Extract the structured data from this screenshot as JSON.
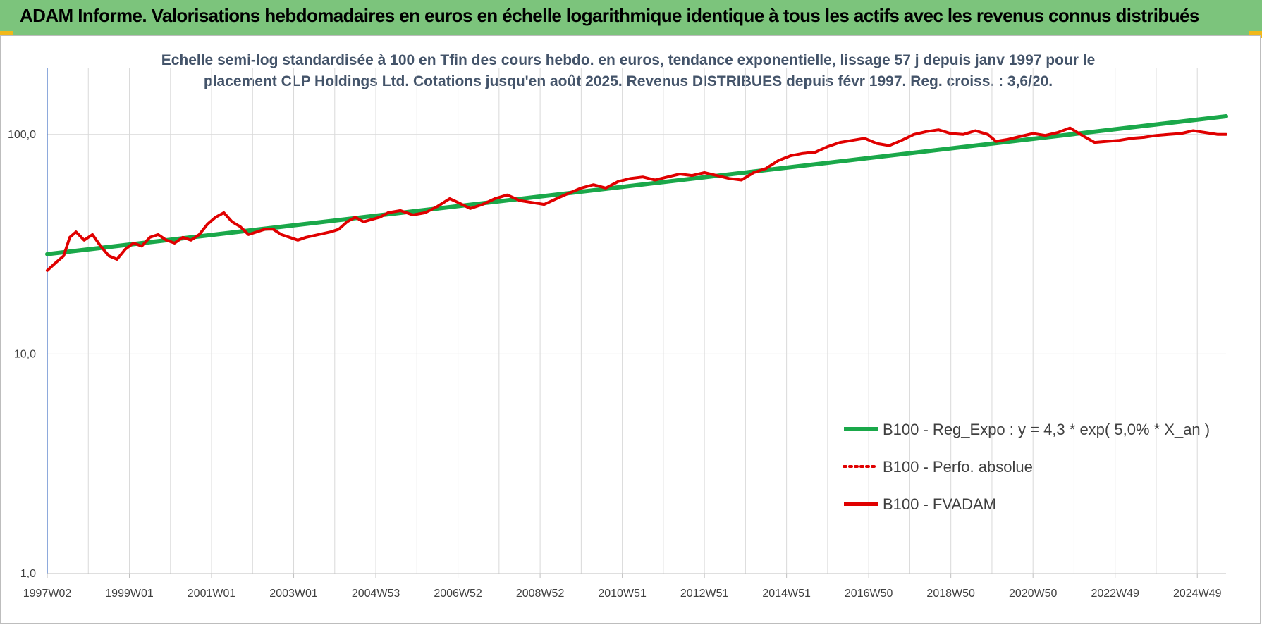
{
  "header": {
    "title": "ADAM Informe. Valorisations hebdomadaires en euros en échelle logarithmique identique à tous les actifs avec les revenus connus distribués",
    "background": "#7cc47c"
  },
  "chart_data": {
    "type": "line",
    "title_lines": [
      "Echelle semi-log standardisée à 100 en Tfin des cours hebdo. en euros, tendance exponentielle, lissage 57 j depuis janv 1997 pour le",
      "placement CLP Holdings Ltd. Cotations jusqu'en août 2025. Revenus DISTRIBUES depuis févr 1997. Reg. croiss. : 3,6/20."
    ],
    "yscale": "log",
    "ylim": [
      1,
      200
    ],
    "y_ticks": [
      1,
      10,
      100
    ],
    "y_tick_labels": [
      "1,0",
      "10,0",
      "100,0"
    ],
    "xlim": [
      1997.0,
      2025.7
    ],
    "x_ticks": [
      1997.0,
      1999.0,
      2001.0,
      2003.0,
      2005.0,
      2007.0,
      2009.0,
      2011.0,
      2013.0,
      2015.0,
      2017.0,
      2019.0,
      2021.0,
      2023.0,
      2025.0
    ],
    "x_tick_labels": [
      "1997W02",
      "1999W01",
      "2001W01",
      "2003W01",
      "2004W53",
      "2006W52",
      "2008W52",
      "2010W51",
      "2012W51",
      "2014W51",
      "2016W50",
      "2018W50",
      "2020W50",
      "2022W49",
      "2024W49"
    ],
    "grid": true,
    "legend_position": "bottom-right",
    "series": [
      {
        "name": "B100 - Reg_Expo : y = 4,3 * exp( 5,0% *  X_an )",
        "color": "#1aa84a",
        "style": "solid",
        "x": [
          1997.0,
          2025.7
        ],
        "y": [
          28.5,
          121
        ]
      },
      {
        "name": "B100 - Perfo. absolue",
        "color": "#e00000",
        "style": "dotted",
        "x": [],
        "y": []
      },
      {
        "name": "B100 - FVADAM",
        "color": "#e00000",
        "style": "solid",
        "x": [
          1997.0,
          1997.2,
          1997.4,
          1997.55,
          1997.7,
          1997.9,
          1998.1,
          1998.3,
          1998.5,
          1998.7,
          1998.9,
          1999.1,
          1999.3,
          1999.5,
          1999.7,
          1999.9,
          2000.1,
          2000.3,
          2000.5,
          2000.7,
          2000.9,
          2001.1,
          2001.3,
          2001.5,
          2001.7,
          2001.9,
          2002.1,
          2002.3,
          2002.5,
          2002.7,
          2002.9,
          2003.1,
          2003.3,
          2003.6,
          2003.9,
          2004.1,
          2004.3,
          2004.5,
          2004.7,
          2004.9,
          2005.1,
          2005.3,
          2005.6,
          2005.9,
          2006.2,
          2006.5,
          2006.8,
          2007.0,
          2007.3,
          2007.6,
          2007.9,
          2008.2,
          2008.5,
          2008.8,
          2009.1,
          2009.4,
          2009.7,
          2010.0,
          2010.3,
          2010.6,
          2010.9,
          2011.2,
          2011.5,
          2011.8,
          2012.1,
          2012.4,
          2012.7,
          2013.0,
          2013.3,
          2013.6,
          2013.9,
          2014.2,
          2014.5,
          2014.8,
          2015.1,
          2015.4,
          2015.7,
          2016.0,
          2016.3,
          2016.6,
          2016.9,
          2017.2,
          2017.5,
          2017.8,
          2018.1,
          2018.4,
          2018.7,
          2019.0,
          2019.3,
          2019.6,
          2019.9,
          2020.1,
          2020.4,
          2020.7,
          2021.0,
          2021.3,
          2021.6,
          2021.9,
          2022.2,
          2022.5,
          2022.8,
          2023.1,
          2023.4,
          2023.7,
          2024.0,
          2024.3,
          2024.6,
          2024.9,
          2025.2,
          2025.5,
          2025.7
        ],
        "y": [
          24,
          26,
          28,
          34,
          36,
          33,
          35,
          31,
          28,
          27,
          30,
          32,
          31,
          34,
          35,
          33,
          32,
          34,
          33,
          35,
          39,
          42,
          44,
          40,
          38,
          35,
          36,
          37,
          37,
          35,
          34,
          33,
          34,
          35,
          36,
          37,
          40,
          42,
          40,
          41,
          42,
          44,
          45,
          43,
          44,
          47,
          51,
          49,
          46,
          48,
          51,
          53,
          50,
          49,
          48,
          51,
          54,
          57,
          59,
          57,
          61,
          63,
          64,
          62,
          64,
          66,
          65,
          67,
          65,
          63,
          62,
          67,
          70,
          76,
          80,
          82,
          83,
          88,
          92,
          94,
          96,
          91,
          89,
          94,
          100,
          103,
          105,
          101,
          100,
          104,
          100,
          93,
          95,
          98,
          101,
          99,
          102,
          107,
          99,
          92,
          93,
          94,
          96,
          97,
          99,
          100,
          101,
          104,
          102,
          100,
          100
        ]
      }
    ]
  }
}
